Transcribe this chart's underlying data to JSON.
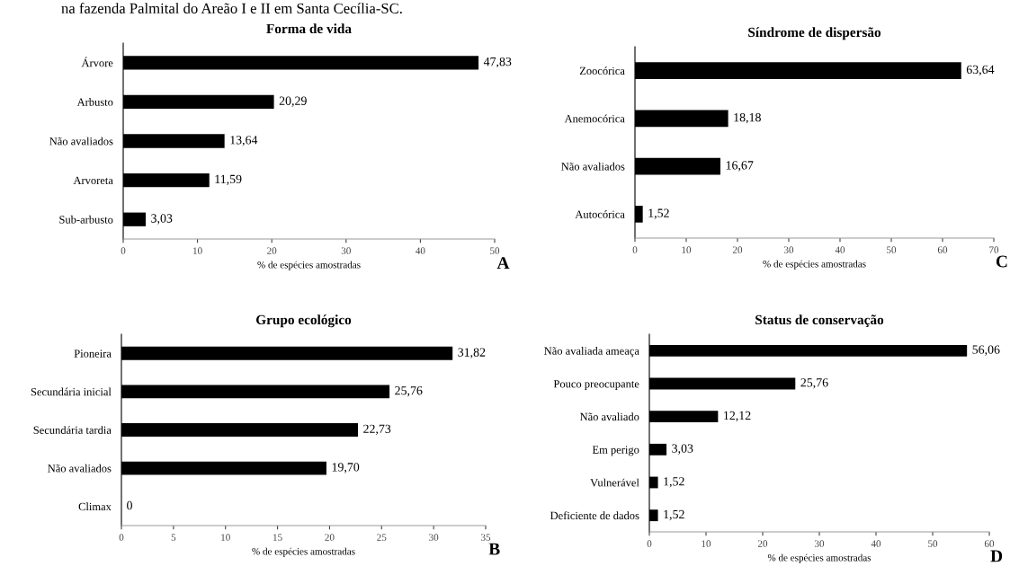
{
  "chart_data": [
    {
      "type": "bar",
      "orientation": "horizontal",
      "title": "Forma de vida",
      "xlabel": "% de espécies amostradas",
      "categories": [
        "Árvore",
        "Arbusto",
        "Não avaliados",
        "Arvoreta",
        "Sub-arbusto"
      ],
      "values": [
        47.83,
        20.29,
        13.64,
        11.59,
        3.03
      ],
      "value_labels": [
        "47,83",
        "20,29",
        "13,64",
        "11,59",
        "3,03"
      ],
      "color": "#000000",
      "xlim": [
        0,
        50
      ],
      "xticks": [
        0,
        10,
        20,
        30,
        40,
        50
      ],
      "grid": false,
      "legend": false,
      "annotations": [
        "na fazenda Palmital do Areão I e II em Santa Cecília-SC.",
        "A"
      ]
    },
    {
      "type": "bar",
      "orientation": "horizontal",
      "title": "Síndrome de dispersão",
      "xlabel": "% de espécies amostradas",
      "categories": [
        "Zoocórica",
        "Anemocórica",
        "Não avaliados",
        "Autocórica"
      ],
      "values": [
        63.64,
        18.18,
        16.67,
        1.52
      ],
      "value_labels": [
        "63,64",
        "18,18",
        "16,67",
        "1,52"
      ],
      "color": "#000000",
      "xlim": [
        0,
        70
      ],
      "xticks": [
        0,
        10,
        20,
        30,
        40,
        50,
        60,
        70
      ],
      "grid": false,
      "legend": false,
      "annotations": [
        "C"
      ]
    },
    {
      "type": "bar",
      "orientation": "horizontal",
      "title": "Grupo ecológico",
      "xlabel": "% de espécies amostradas",
      "categories": [
        "Pioneira",
        "Secundária inicial",
        "Secundária tardia",
        "Não avaliados",
        "Climax"
      ],
      "values": [
        31.82,
        25.76,
        22.73,
        19.7,
        0
      ],
      "value_labels": [
        "31,82",
        "25,76",
        "22,73",
        "19,70",
        "0"
      ],
      "color": "#000000",
      "xlim": [
        0,
        35
      ],
      "xticks": [
        0,
        5,
        10,
        15,
        20,
        25,
        30,
        35
      ],
      "grid": false,
      "legend": false,
      "annotations": [
        "B"
      ]
    },
    {
      "type": "bar",
      "orientation": "horizontal",
      "title": "Status de conservação",
      "xlabel": "% de espécies amostradas",
      "categories": [
        "Não avaliada ameaça",
        "Pouco preocupante",
        "Não avaliado",
        "Em perigo",
        "Vulnerável",
        "Deficiente de dados"
      ],
      "values": [
        56.06,
        25.76,
        12.12,
        3.03,
        1.52,
        1.52
      ],
      "value_labels": [
        "56,06",
        "25,76",
        "12,12",
        "3,03",
        "1,52",
        "1,52"
      ],
      "color": "#000000",
      "xlim": [
        0,
        60
      ],
      "xticks": [
        0,
        10,
        20,
        30,
        40,
        50,
        60
      ],
      "grid": false,
      "legend": false,
      "annotations": [
        "D"
      ]
    }
  ]
}
